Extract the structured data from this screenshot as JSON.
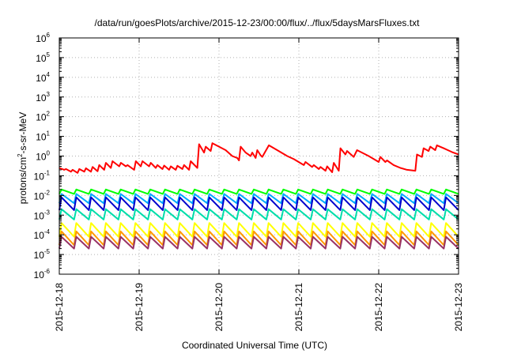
{
  "chart_data": {
    "type": "line",
    "title": "/data/run/goesPlots/archive/2015-12-23/00:00/flux/../flux/5daysMarsFluxes.txt",
    "xlabel": "Coordinated Universal Time (UTC)",
    "ylabel": {
      "base": "protons/cm",
      "sup": "2",
      "rest": "-s-sr-MeV"
    },
    "x_ticks": [
      "2015-12-18",
      "2015-12-19",
      "2015-12-20",
      "2015-12-21",
      "2015-12-22",
      "2015-12-23"
    ],
    "xlim": [
      "2015-12-18",
      "2015-12-23"
    ],
    "y_scale": "log",
    "ylim": [
      1e-06,
      1000000.0
    ],
    "y_ticks": [
      {
        "value": 1e-06,
        "base": "10",
        "exp": "-6"
      },
      {
        "value": 1e-05,
        "base": "10",
        "exp": "-5"
      },
      {
        "value": 0.0001,
        "base": "10",
        "exp": "-4"
      },
      {
        "value": 0.001,
        "base": "10",
        "exp": "-3"
      },
      {
        "value": 0.01,
        "base": "10",
        "exp": "-2"
      },
      {
        "value": 0.1,
        "base": "10",
        "exp": "-1"
      },
      {
        "value": 1.0,
        "base": "10",
        "exp": "0"
      },
      {
        "value": 10.0,
        "base": "10",
        "exp": "1"
      },
      {
        "value": 100.0,
        "base": "10",
        "exp": "2"
      },
      {
        "value": 1000.0,
        "base": "10",
        "exp": "3"
      },
      {
        "value": 10000.0,
        "base": "10",
        "exp": "4"
      },
      {
        "value": 100000.0,
        "base": "10",
        "exp": "5"
      },
      {
        "value": 1000000.0,
        "base": "10",
        "exp": "6"
      }
    ],
    "grid": true,
    "legend": "none",
    "series": [
      {
        "color": "#ff0000",
        "points": [
          [
            "2015-12-18 00:00",
            0.25
          ],
          [
            "2015-12-18 01:30",
            0.2
          ],
          [
            "2015-12-18 02:00",
            0.22
          ],
          [
            "2015-12-18 03:30",
            0.16
          ],
          [
            "2015-12-18 04:00",
            0.2
          ],
          [
            "2015-12-18 05:30",
            0.14
          ],
          [
            "2015-12-18 06:00",
            0.22
          ],
          [
            "2015-12-18 07:30",
            0.16
          ],
          [
            "2015-12-18 08:00",
            0.24
          ],
          [
            "2015-12-18 09:30",
            0.16
          ],
          [
            "2015-12-18 10:00",
            0.28
          ],
          [
            "2015-12-18 11:30",
            0.17
          ],
          [
            "2015-12-18 12:00",
            0.35
          ],
          [
            "2015-12-18 13:30",
            0.2
          ],
          [
            "2015-12-18 14:00",
            0.45
          ],
          [
            "2015-12-18 15:30",
            0.25
          ],
          [
            "2015-12-18 16:00",
            0.55
          ],
          [
            "2015-12-18 18:00",
            0.3
          ],
          [
            "2015-12-18 18:30",
            0.45
          ],
          [
            "2015-12-18 20:00",
            0.3
          ],
          [
            "2015-12-18 20:30",
            0.35
          ],
          [
            "2015-12-18 22:30",
            0.2
          ],
          [
            "2015-12-18 23:00",
            0.55
          ],
          [
            "2015-12-19 00:30",
            0.3
          ],
          [
            "2015-12-19 01:00",
            0.55
          ],
          [
            "2015-12-19 03:00",
            0.3
          ],
          [
            "2015-12-19 03:30",
            0.45
          ],
          [
            "2015-12-19 05:00",
            0.25
          ],
          [
            "2015-12-19 05:30",
            0.35
          ],
          [
            "2015-12-19 07:00",
            0.22
          ],
          [
            "2015-12-19 07:30",
            0.33
          ],
          [
            "2015-12-19 09:00",
            0.2
          ],
          [
            "2015-12-19 09:30",
            0.3
          ],
          [
            "2015-12-19 11:00",
            0.2
          ],
          [
            "2015-12-19 11:30",
            0.32
          ],
          [
            "2015-12-19 13:00",
            0.22
          ],
          [
            "2015-12-19 13:30",
            0.35
          ],
          [
            "2015-12-19 15:00",
            0.2
          ],
          [
            "2015-12-19 15:30",
            0.55
          ],
          [
            "2015-12-19 17:30",
            0.25
          ],
          [
            "2015-12-19 18:00",
            4.0
          ],
          [
            "2015-12-19 19:30",
            1.5
          ],
          [
            "2015-12-19 20:00",
            3.0
          ],
          [
            "2015-12-19 21:30",
            1.8
          ],
          [
            "2015-12-19 22:00",
            4.5
          ],
          [
            "2015-12-20 02:00",
            2.0
          ],
          [
            "2015-12-20 04:00",
            1.0
          ],
          [
            "2015-12-20 05:30",
            0.8
          ],
          [
            "2015-12-20 06:00",
            0.6
          ],
          [
            "2015-12-20 06:30",
            3.0
          ],
          [
            "2015-12-20 08:00",
            1.5
          ],
          [
            "2015-12-20 09:30",
            1.0
          ],
          [
            "2015-12-20 10:00",
            1.5
          ],
          [
            "2015-12-20 11:00",
            0.8
          ],
          [
            "2015-12-20 11:30",
            2.0
          ],
          [
            "2015-12-20 12:30",
            1.1
          ],
          [
            "2015-12-20 13:00",
            0.9
          ],
          [
            "2015-12-20 15:00",
            3.5
          ],
          [
            "2015-12-20 17:30",
            2.0
          ],
          [
            "2015-12-20 20:30",
            1.0
          ],
          [
            "2015-12-20 22:30",
            0.7
          ],
          [
            "2015-12-21 01:30",
            0.35
          ],
          [
            "2015-12-21 02:00",
            0.5
          ],
          [
            "2015-12-21 04:00",
            0.28
          ],
          [
            "2015-12-21 04:30",
            0.35
          ],
          [
            "2015-12-21 06:00",
            0.22
          ],
          [
            "2015-12-21 06:30",
            0.28
          ],
          [
            "2015-12-21 08:00",
            0.18
          ],
          [
            "2015-12-21 08:30",
            0.3
          ],
          [
            "2015-12-21 10:00",
            0.15
          ],
          [
            "2015-12-21 10:30",
            0.45
          ],
          [
            "2015-12-21 12:00",
            0.18
          ],
          [
            "2015-12-21 12:30",
            2.5
          ],
          [
            "2015-12-21 14:00",
            1.2
          ],
          [
            "2015-12-21 14:30",
            1.8
          ],
          [
            "2015-12-21 16:30",
            0.9
          ],
          [
            "2015-12-21 17:30",
            2.0
          ],
          [
            "2015-12-21 21:00",
            1.0
          ],
          [
            "2015-12-22 00:00",
            0.5
          ],
          [
            "2015-12-22 00:30",
            0.9
          ],
          [
            "2015-12-22 02:00",
            0.5
          ],
          [
            "2015-12-22 02:30",
            0.6
          ],
          [
            "2015-12-22 04:30",
            0.35
          ],
          [
            "2015-12-22 06:30",
            0.25
          ],
          [
            "2015-12-22 08:30",
            0.2
          ],
          [
            "2015-12-22 11:00",
            0.18
          ],
          [
            "2015-12-22 11:30",
            1.2
          ],
          [
            "2015-12-22 13:00",
            0.9
          ],
          [
            "2015-12-22 13:30",
            2.5
          ],
          [
            "2015-12-22 15:00",
            1.8
          ],
          [
            "2015-12-22 15:30",
            3.0
          ],
          [
            "2015-12-22 17:00",
            2.0
          ],
          [
            "2015-12-22 17:30",
            3.5
          ],
          [
            "2015-12-22 19:30",
            2.5
          ],
          [
            "2015-12-22 22:00",
            1.6
          ],
          [
            "2015-12-23 00:00",
            1.2
          ]
        ]
      },
      {
        "color": "#00ff00",
        "sawtooth": {
          "peak": 0.02,
          "trough": 0.012,
          "cycles": 27
        }
      },
      {
        "color": "#00aaff",
        "sawtooth": {
          "peak": 0.012,
          "trough": 0.004,
          "cycles": 27
        }
      },
      {
        "color": "#0000cc",
        "sawtooth": {
          "peak": 0.008,
          "trough": 0.0018,
          "cycles": 27
        }
      },
      {
        "color": "#00ddaa",
        "sawtooth": {
          "peak": 0.002,
          "trough": 0.0006,
          "cycles": 27
        }
      },
      {
        "color": "#ffff00",
        "sawtooth": {
          "peak": 0.0004,
          "trough": 8e-05,
          "cycles": 27
        }
      },
      {
        "color": "#ff9900",
        "sawtooth": {
          "peak": 0.00015,
          "trough": 3e-05,
          "cycles": 27
        }
      },
      {
        "color": "#993366",
        "sawtooth": {
          "peak": 8e-05,
          "trough": 2e-05,
          "cycles": 27
        }
      }
    ]
  }
}
